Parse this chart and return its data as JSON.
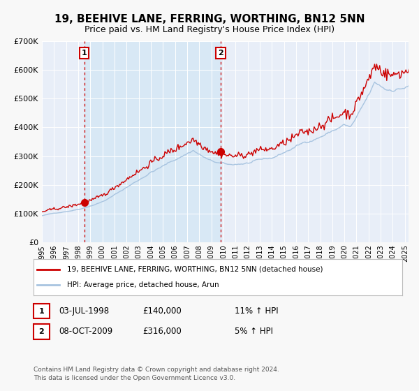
{
  "title": "19, BEEHIVE LANE, FERRING, WORTHING, BN12 5NN",
  "subtitle": "Price paid vs. HM Land Registry's House Price Index (HPI)",
  "ylim": [
    0,
    700000
  ],
  "xlim_start": 1995.0,
  "xlim_end": 2025.3,
  "yticks": [
    0,
    100000,
    200000,
    300000,
    400000,
    500000,
    600000,
    700000
  ],
  "hpi_line_color": "#a8c4e0",
  "price_line_color": "#cc0000",
  "dot_color": "#cc0000",
  "vline_color": "#cc0000",
  "shade_color": "#d8e8f5",
  "legend_label_price": "19, BEEHIVE LANE, FERRING, WORTHING, BN12 5NN (detached house)",
  "legend_label_hpi": "HPI: Average price, detached house, Arun",
  "transaction1_date": 1998.5,
  "transaction1_price": 140000,
  "transaction2_date": 2009.77,
  "transaction2_price": 316000,
  "annotation1_date": "03-JUL-1998",
  "annotation1_price": "£140,000",
  "annotation1_hpi": "11% ↑ HPI",
  "annotation2_date": "08-OCT-2009",
  "annotation2_price": "£316,000",
  "annotation2_hpi": "5% ↑ HPI",
  "footnote": "Contains HM Land Registry data © Crown copyright and database right 2024.\nThis data is licensed under the Open Government Licence v3.0.",
  "bg_color": "#f8f8f8",
  "plot_bg_color": "#e8eef8"
}
